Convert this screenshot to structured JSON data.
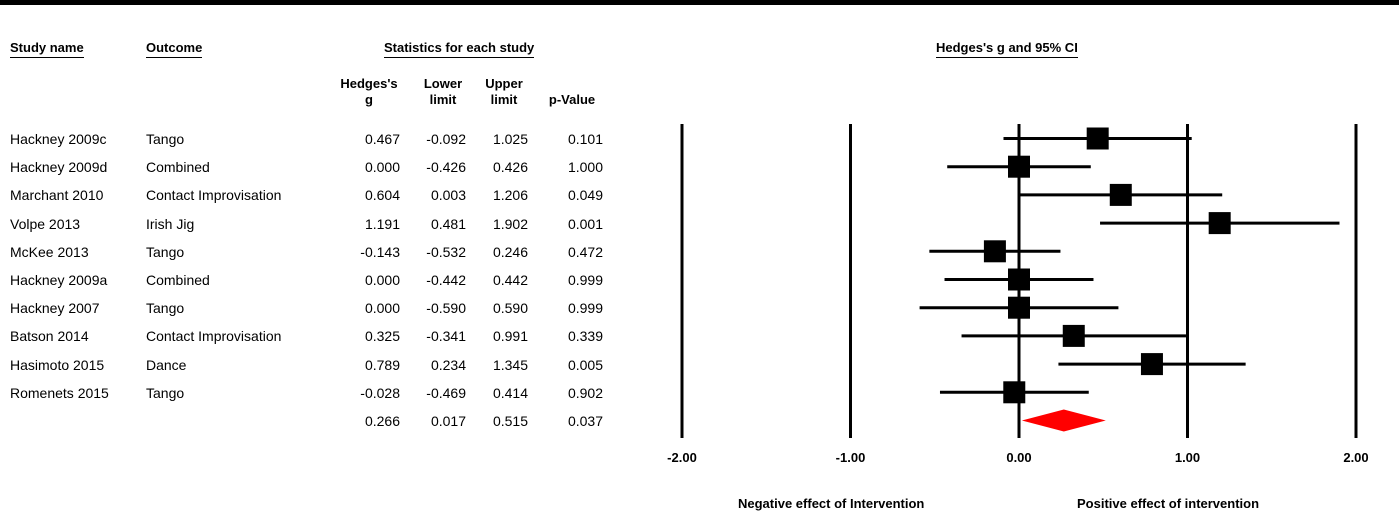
{
  "headers": {
    "study_name": "Study name",
    "outcome": "Outcome",
    "stats": "Statistics for each study",
    "plot": "Hedges's g and 95% CI",
    "hedges_line1": "Hedges's",
    "hedges_line2": "g",
    "lower_line1": "Lower",
    "lower_line2": "limit",
    "upper_line1": "Upper",
    "upper_line2": "limit",
    "pvalue": "p-Value"
  },
  "rows": [
    {
      "study": "Hackney 2009c",
      "outcome": "Tango",
      "g": "0.467",
      "lower": "-0.092",
      "upper": "1.025",
      "p": "0.101"
    },
    {
      "study": "Hackney 2009d",
      "outcome": "Combined",
      "g": "0.000",
      "lower": "-0.426",
      "upper": "0.426",
      "p": "1.000"
    },
    {
      "study": "Marchant 2010",
      "outcome": "Contact Improvisation",
      "g": "0.604",
      "lower": "0.003",
      "upper": "1.206",
      "p": "0.049"
    },
    {
      "study": "Volpe 2013",
      "outcome": "Irish Jig",
      "g": "1.191",
      "lower": "0.481",
      "upper": "1.902",
      "p": "0.001"
    },
    {
      "study": "McKee 2013",
      "outcome": "Tango",
      "g": "-0.143",
      "lower": "-0.532",
      "upper": "0.246",
      "p": "0.472"
    },
    {
      "study": "Hackney 2009a",
      "outcome": "Combined",
      "g": "0.000",
      "lower": "-0.442",
      "upper": "0.442",
      "p": "0.999"
    },
    {
      "study": "Hackney 2007",
      "outcome": "Tango",
      "g": "0.000",
      "lower": "-0.590",
      "upper": "0.590",
      "p": "0.999"
    },
    {
      "study": "Batson 2014",
      "outcome": "Contact Improvisation",
      "g": "0.325",
      "lower": "-0.341",
      "upper": "0.991",
      "p": "0.339"
    },
    {
      "study": "Hasimoto 2015",
      "outcome": "Dance",
      "g": "0.789",
      "lower": "0.234",
      "upper": "1.345",
      "p": "0.005"
    },
    {
      "study": "Romenets 2015",
      "outcome": "Tango",
      "g": "-0.028",
      "lower": "-0.469",
      "upper": "0.414",
      "p": "0.902"
    }
  ],
  "summary": {
    "g": "0.266",
    "lower": "0.017",
    "upper": "0.515",
    "p": "0.037"
  },
  "axis_notes": {
    "left": "Negative effect of Intervention",
    "right": "Positive effect of intervention"
  },
  "chart_data": {
    "type": "forest",
    "title": "Hedges's g and 95% CI",
    "xlim": [
      -2,
      2
    ],
    "ticks": [
      -2,
      -1,
      0,
      1,
      2
    ],
    "tick_labels": [
      "-2.00",
      "-1.00",
      "0.00",
      "1.00",
      "2.00"
    ],
    "reference_lines": [
      -2,
      -1,
      0,
      1,
      2
    ],
    "studies": [
      {
        "name": "Hackney 2009c",
        "g": 0.467,
        "lower": -0.092,
        "upper": 1.025
      },
      {
        "name": "Hackney 2009d",
        "g": 0.0,
        "lower": -0.426,
        "upper": 0.426
      },
      {
        "name": "Marchant 2010",
        "g": 0.604,
        "lower": 0.003,
        "upper": 1.206
      },
      {
        "name": "Volpe 2013",
        "g": 1.191,
        "lower": 0.481,
        "upper": 1.902
      },
      {
        "name": "McKee 2013",
        "g": -0.143,
        "lower": -0.532,
        "upper": 0.246
      },
      {
        "name": "Hackney 2009a",
        "g": 0.0,
        "lower": -0.442,
        "upper": 0.442
      },
      {
        "name": "Hackney 2007",
        "g": 0.0,
        "lower": -0.59,
        "upper": 0.59
      },
      {
        "name": "Batson 2014",
        "g": 0.325,
        "lower": -0.341,
        "upper": 0.991
      },
      {
        "name": "Hasimoto 2015",
        "g": 0.789,
        "lower": 0.234,
        "upper": 1.345
      },
      {
        "name": "Romenets 2015",
        "g": -0.028,
        "lower": -0.469,
        "upper": 0.414
      }
    ],
    "summary": {
      "g": 0.266,
      "lower": 0.017,
      "upper": 0.515
    },
    "colors": {
      "marker": "#000000",
      "summary": "#ff0000"
    }
  }
}
